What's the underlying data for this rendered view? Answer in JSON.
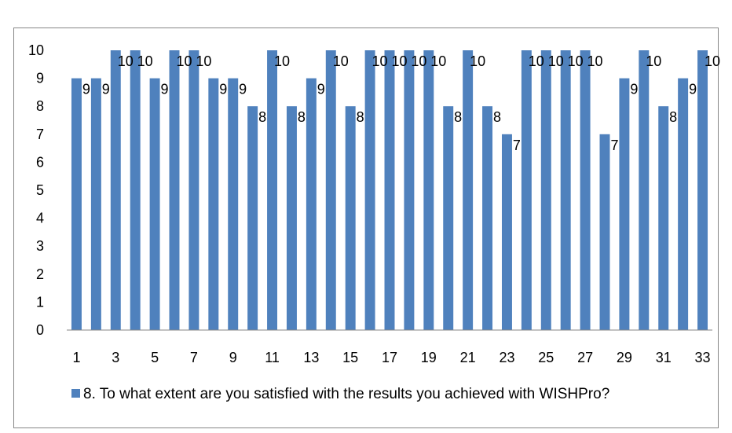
{
  "chart_data": {
    "type": "bar",
    "categories": [
      "1",
      "2",
      "3",
      "4",
      "5",
      "6",
      "7",
      "8",
      "9",
      "10",
      "11",
      "12",
      "13",
      "14",
      "15",
      "16",
      "17",
      "18",
      "19",
      "20",
      "21",
      "22",
      "23",
      "24",
      "25",
      "26",
      "27",
      "28",
      "29",
      "30",
      "31",
      "32",
      "33"
    ],
    "x_tick_labels": [
      "1",
      "3",
      "5",
      "7",
      "9",
      "11",
      "13",
      "15",
      "17",
      "19",
      "21",
      "23",
      "25",
      "27",
      "29",
      "31",
      "33"
    ],
    "y_tick_labels": [
      "0",
      "1",
      "2",
      "3",
      "4",
      "5",
      "6",
      "7",
      "8",
      "9",
      "10"
    ],
    "series": [
      {
        "name": "8. To what extent are you satisfied with the results you achieved with WISHPro?",
        "values": [
          9,
          9,
          10,
          10,
          9,
          10,
          10,
          9,
          9,
          8,
          10,
          8,
          9,
          10,
          8,
          10,
          10,
          10,
          10,
          8,
          10,
          8,
          7,
          10,
          10,
          10,
          10,
          7,
          9,
          10,
          8,
          9,
          10
        ],
        "color": "#4f81bd"
      }
    ],
    "ylim": [
      0,
      10
    ],
    "data_labels": true,
    "grid": false,
    "legend_position": "bottom"
  }
}
